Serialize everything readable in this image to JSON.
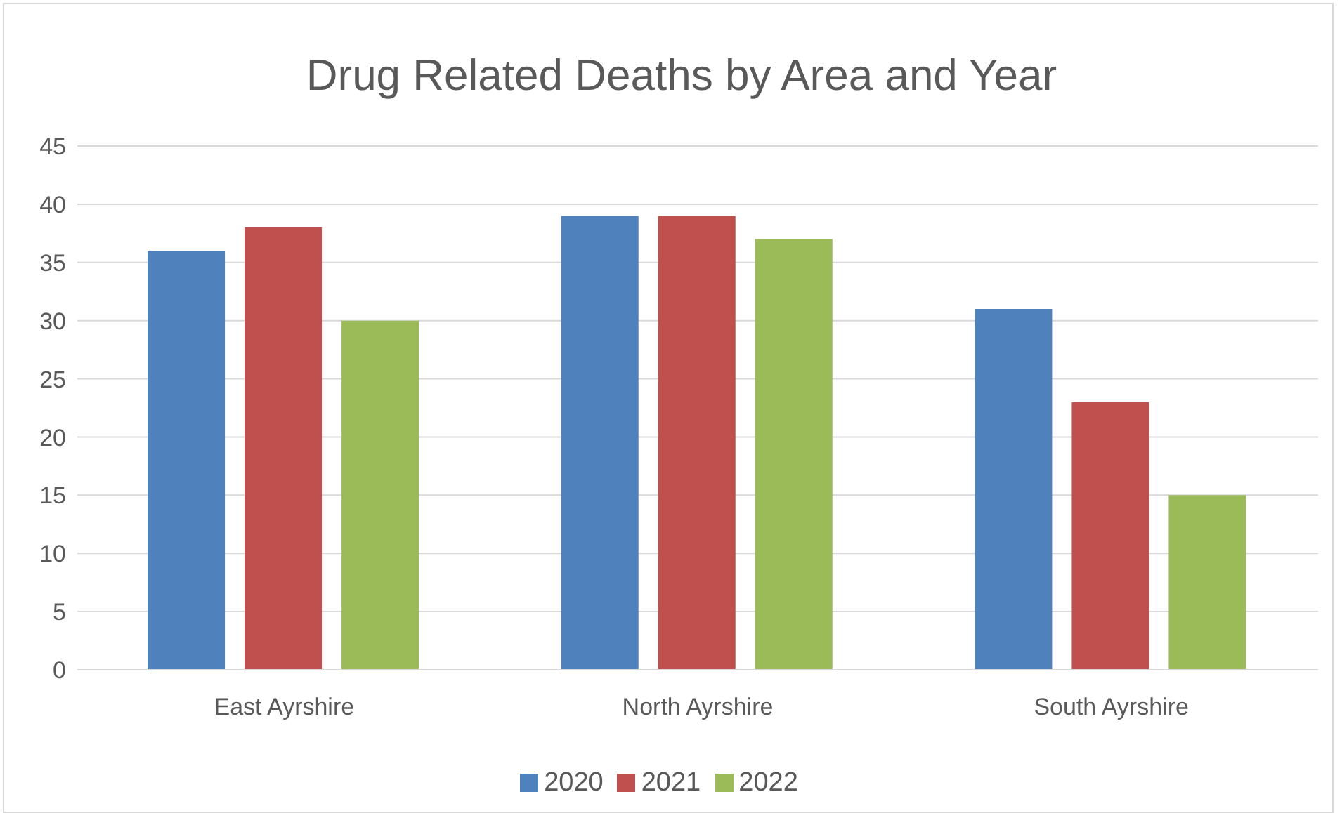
{
  "chart_data": {
    "type": "bar",
    "title": "Drug Related Deaths by Area and Year",
    "categories": [
      "East Ayrshire",
      "North Ayrshire",
      "South Ayrshire"
    ],
    "series": [
      {
        "name": "2020",
        "color": "#4f81bd",
        "values": [
          36,
          39,
          31
        ]
      },
      {
        "name": "2021",
        "color": "#c0504d",
        "values": [
          38,
          39,
          23
        ]
      },
      {
        "name": "2022",
        "color": "#9bbb59",
        "values": [
          30,
          37,
          15
        ]
      }
    ],
    "ylim": [
      0,
      45
    ],
    "yticks": [
      0,
      5,
      10,
      15,
      20,
      25,
      30,
      35,
      40,
      45
    ],
    "grid": "y",
    "legend": "bottom"
  }
}
